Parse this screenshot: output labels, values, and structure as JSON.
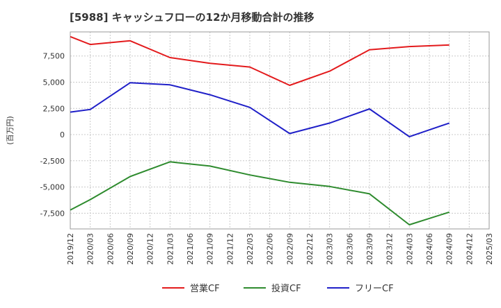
{
  "chart_data": {
    "type": "line",
    "title": "[5988]  キャッシュフローの12か月移動合計の推移",
    "ylabel": "(百万円)",
    "xlabel": "",
    "ylim": [
      -9000,
      9800
    ],
    "yticks": [
      -7500,
      -5000,
      -2500,
      0,
      2500,
      5000,
      7500
    ],
    "ytick_labels": [
      "-7,500",
      "-5,000",
      "-2,500",
      "0",
      "2,500",
      "5,000",
      "7,500"
    ],
    "categories": [
      "2019/12",
      "2020/03",
      "2020/06",
      "2020/09",
      "2020/12",
      "2021/03",
      "2021/06",
      "2021/09",
      "2021/12",
      "2022/03",
      "2022/06",
      "2022/09",
      "2022/12",
      "2023/03",
      "2023/06",
      "2023/09",
      "2023/12",
      "2024/03",
      "2024/06",
      "2024/09",
      "2024/12",
      "2025/03"
    ],
    "series": [
      {
        "name": "営業CF",
        "color": "#e31a1c",
        "values": [
          9350,
          8600,
          null,
          8950,
          null,
          7350,
          null,
          6800,
          null,
          6450,
          null,
          4700,
          null,
          6050,
          null,
          8100,
          null,
          8400,
          null,
          8550,
          null,
          null
        ]
      },
      {
        "name": "投資CF",
        "color": "#2e8b2e",
        "values": [
          -7200,
          -6200,
          null,
          -4000,
          null,
          -2600,
          null,
          -3000,
          null,
          -3850,
          null,
          -4550,
          null,
          -4950,
          null,
          -5650,
          null,
          -8600,
          null,
          -7400,
          null,
          null
        ]
      },
      {
        "name": "フリーCF",
        "color": "#1f1fc8",
        "values": [
          2150,
          2400,
          null,
          4950,
          null,
          4750,
          null,
          3800,
          null,
          2600,
          null,
          100,
          null,
          1100,
          null,
          2450,
          null,
          -200,
          null,
          1100,
          null,
          null
        ]
      }
    ],
    "legend_position": "bottom",
    "grid": true
  }
}
